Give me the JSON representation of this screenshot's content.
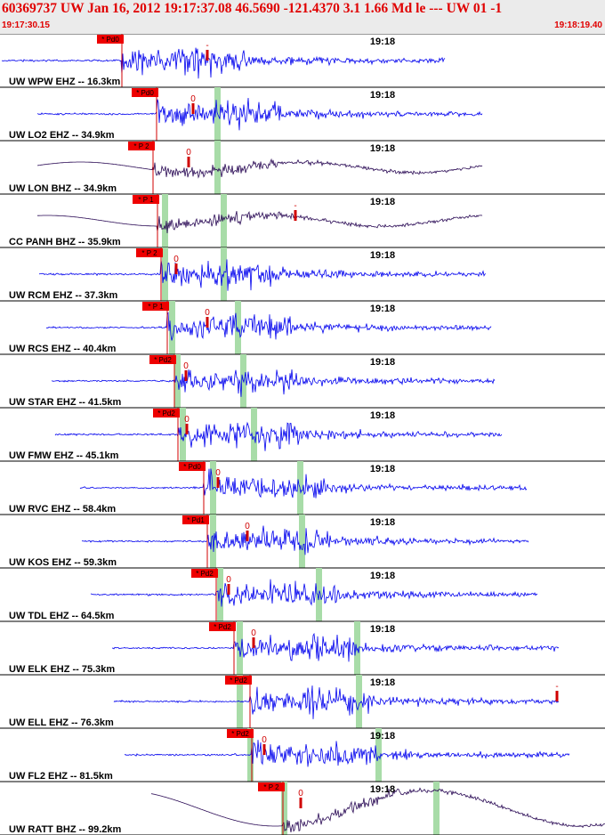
{
  "header": {
    "title": "60369737 UW Jan 16, 2012 19:17:37.08   46.5690 -121.4370  3.1 1.66 Md le --- UW 01  -1",
    "start_time": "19:17:30.15",
    "end_time": "19:18:19.40"
  },
  "colors": {
    "header_text": "#e00000",
    "short_period_trace": "#0000ee",
    "broadband_trace": "#2a0a55",
    "pick_box": "#ee0000",
    "travel_time_window": "#a8dca8",
    "divider": "#000000"
  },
  "chart_data": {
    "type": "seismogram",
    "title": "60369737 UW Jan 16, 2012 19:17:37.08   46.5690 -121.4370  3.1 1.66 Md le --- UW 01  -1",
    "time_window": [
      "19:17:30.15",
      "19:18:19.40"
    ],
    "minute_label": "19:18",
    "traces": [
      {
        "label": "UW WPW EHZ -- 16.3km",
        "station": "WPW",
        "channel": "EHZ",
        "distance_km": 16.3,
        "pick": "Pd0",
        "coda_mark": "-",
        "kind": "sp"
      },
      {
        "label": "UW LO2 EHZ -- 34.9km",
        "station": "LO2",
        "channel": "EHZ",
        "distance_km": 34.9,
        "pick": "Pd0",
        "coda_mark": "0",
        "kind": "sp"
      },
      {
        "label": "UW LON BHZ -- 34.9km",
        "station": "LON",
        "channel": "BHZ",
        "distance_km": 34.9,
        "pick": "P 2",
        "coda_mark": "0",
        "kind": "bb"
      },
      {
        "label": "CC PANH BHZ -- 35.9km",
        "station": "PANH",
        "channel": "BHZ",
        "distance_km": 35.9,
        "pick": "P 1",
        "coda_mark": "-",
        "kind": "bb"
      },
      {
        "label": "UW RCM EHZ -- 37.3km",
        "station": "RCM",
        "channel": "EHZ",
        "distance_km": 37.3,
        "pick": "P 2",
        "coda_mark": "0",
        "kind": "sp"
      },
      {
        "label": "UW RCS EHZ -- 40.4km",
        "station": "RCS",
        "channel": "EHZ",
        "distance_km": 40.4,
        "pick": "P 1",
        "coda_mark": "0",
        "kind": "sp"
      },
      {
        "label": "UW STAR EHZ -- 41.5km",
        "station": "STAR",
        "channel": "EHZ",
        "distance_km": 41.5,
        "pick": "Pd2",
        "coda_mark": "0",
        "kind": "sp"
      },
      {
        "label": "UW FMW EHZ -- 45.1km",
        "station": "FMW",
        "channel": "EHZ",
        "distance_km": 45.1,
        "pick": "Pd2",
        "coda_mark": "0",
        "kind": "sp"
      },
      {
        "label": "UW RVC EHZ -- 58.4km",
        "station": "RVC",
        "channel": "EHZ",
        "distance_km": 58.4,
        "pick": "Pd0",
        "coda_mark": "0",
        "kind": "sp"
      },
      {
        "label": "UW KOS EHZ -- 59.3km",
        "station": "KOS",
        "channel": "EHZ",
        "distance_km": 59.3,
        "pick": "Pd1",
        "coda_mark": "0",
        "kind": "sp"
      },
      {
        "label": "UW TDL EHZ -- 64.5km",
        "station": "TDL",
        "channel": "EHZ",
        "distance_km": 64.5,
        "pick": "Pd2",
        "coda_mark": "0",
        "kind": "sp"
      },
      {
        "label": "UW ELK EHZ -- 75.3km",
        "station": "ELK",
        "channel": "EHZ",
        "distance_km": 75.3,
        "pick": "Pd2",
        "coda_mark": "0",
        "kind": "sp"
      },
      {
        "label": "UW ELL EHZ -- 76.3km",
        "station": "ELL",
        "channel": "EHZ",
        "distance_km": 76.3,
        "pick": "Pd2",
        "coda_mark": "-",
        "kind": "sp"
      },
      {
        "label": "UW FL2 EHZ -- 81.5km",
        "station": "FL2",
        "channel": "EHZ",
        "distance_km": 81.5,
        "pick": "Pd2",
        "coda_mark": "0",
        "kind": "sp"
      },
      {
        "label": "UW RATT BHZ -- 99.2km",
        "station": "RATT",
        "channel": "BHZ",
        "distance_km": 99.2,
        "pick": "P 2",
        "coda_mark": "0",
        "kind": "bb"
      }
    ]
  }
}
